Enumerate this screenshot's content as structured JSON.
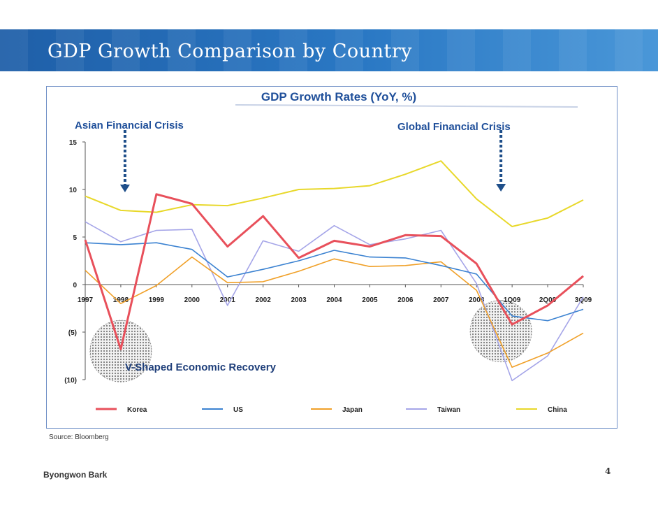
{
  "slide": {
    "title": "GDP Growth Comparison by Country",
    "source": "Source: Bloomberg",
    "author": "Byongwon Bark",
    "page_number": "4"
  },
  "colors": {
    "Korea": "#e8505b",
    "US": "#3b82d1",
    "Japan": "#f0a028",
    "Taiwan": "#a5a5e8",
    "China": "#e8d82a",
    "title_blue": "#1f4f9a",
    "arrow": "#1f4f8a"
  },
  "chart_data": {
    "type": "line",
    "title": "GDP Growth Rates (YoY, %)",
    "categories": [
      "1997",
      "1998",
      "1999",
      "2000",
      "2001",
      "2002",
      "2003",
      "2004",
      "2005",
      "2006",
      "2007",
      "2008",
      "1Q09",
      "2Q09",
      "3Q09"
    ],
    "ylim": [
      -10,
      15
    ],
    "yticks": [
      15,
      10,
      5,
      0,
      -5,
      -10
    ],
    "ytick_labels": [
      "15",
      "10",
      "5",
      "0",
      "(5)",
      "(10)"
    ],
    "series": [
      {
        "name": "Korea",
        "values": [
          4.7,
          -6.8,
          9.5,
          8.5,
          4.0,
          7.2,
          2.8,
          4.6,
          4.0,
          5.2,
          5.1,
          2.2,
          -4.2,
          -2.2,
          0.9
        ]
      },
      {
        "name": "US",
        "values": [
          4.4,
          4.2,
          4.4,
          3.7,
          0.8,
          1.6,
          2.5,
          3.6,
          2.9,
          2.8,
          2.0,
          1.1,
          -3.3,
          -3.8,
          -2.6
        ]
      },
      {
        "name": "Japan",
        "values": [
          1.5,
          -2.0,
          -0.1,
          2.9,
          0.2,
          0.3,
          1.4,
          2.7,
          1.9,
          2.0,
          2.4,
          -0.6,
          -8.7,
          -7.2,
          -5.1
        ]
      },
      {
        "name": "Taiwan",
        "values": [
          6.6,
          4.5,
          5.7,
          5.8,
          -2.2,
          4.6,
          3.5,
          6.2,
          4.2,
          4.8,
          5.7,
          0.1,
          -10.1,
          -7.5,
          -1.3
        ]
      },
      {
        "name": "China",
        "values": [
          9.3,
          7.8,
          7.6,
          8.4,
          8.3,
          9.1,
          10.0,
          10.1,
          10.4,
          11.6,
          13.0,
          9.0,
          6.1,
          7.0,
          8.9
        ]
      }
    ],
    "annotations": {
      "asian_crisis": "Asian Financial Crisis",
      "global_crisis": "Global Financial Crisis",
      "recovery": "V-Shaped Economic Recovery"
    },
    "legend": {
      "position": "bottom",
      "entries": [
        "Korea",
        "US",
        "Japan",
        "Taiwan",
        "China"
      ]
    }
  }
}
